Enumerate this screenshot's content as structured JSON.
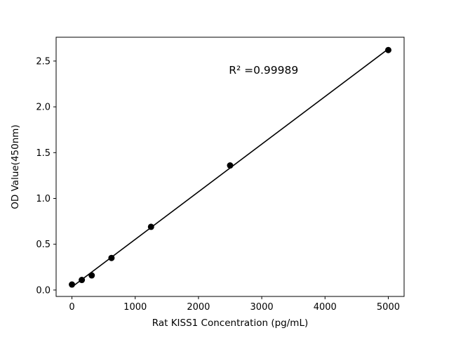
{
  "chart_data": {
    "type": "scatter",
    "title": "",
    "xlabel": "Rat KISS1 Concentration (pg/mL)",
    "ylabel": "OD Value(450nm)",
    "annotation": {
      "text": "R² =0.99989",
      "x": 2480,
      "y": 2.36
    },
    "x": [
      0,
      156.25,
      312.5,
      625,
      1250,
      2500,
      5000
    ],
    "y": [
      0.06,
      0.11,
      0.16,
      0.35,
      0.69,
      1.36,
      2.62
    ],
    "fit_line": true,
    "xlim": [
      -250,
      5250
    ],
    "ylim": [
      -0.07,
      2.76
    ],
    "xticks": {
      "values": [
        0,
        1000,
        2000,
        3000,
        4000,
        5000
      ],
      "labels": [
        "0",
        "1000",
        "2000",
        "3000",
        "4000",
        "5000"
      ]
    },
    "yticks": {
      "values": [
        0,
        0.5,
        1.0,
        1.5,
        2.0,
        2.5
      ],
      "labels": [
        "0.0",
        "0.5",
        "1.0",
        "1.5",
        "2.0",
        "2.5"
      ]
    },
    "grid": false,
    "legend": null,
    "colors": {
      "line": "#000000",
      "marker": "#000000",
      "axis": "#000000",
      "background": "#ffffff"
    }
  }
}
